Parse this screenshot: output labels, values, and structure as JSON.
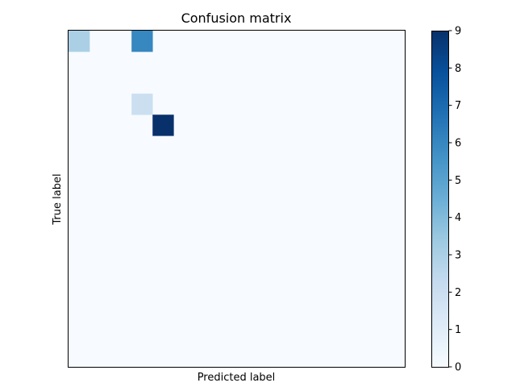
{
  "chart_data": {
    "type": "heatmap",
    "title": "Confusion matrix",
    "xlabel": "Predicted label",
    "ylabel": "True label",
    "grid": false,
    "legend": "none",
    "rows": 16,
    "cols": 16,
    "cells": [
      {
        "row": 0,
        "col": 0,
        "value": 3
      },
      {
        "row": 0,
        "col": 3,
        "value": 6
      },
      {
        "row": 3,
        "col": 3,
        "value": 2
      },
      {
        "row": 4,
        "col": 4,
        "value": 9
      }
    ],
    "colorbar": {
      "range": [
        0,
        9
      ],
      "ticks": [
        "0",
        "1",
        "2",
        "3",
        "4",
        "5",
        "6",
        "7",
        "8",
        "9"
      ],
      "colormap": "Blues",
      "colors": [
        "#f7fbff",
        "#deebf7",
        "#c6dbef",
        "#9ecae1",
        "#6baed6",
        "#4292c6",
        "#2171b5",
        "#08519c",
        "#08306b"
      ]
    }
  }
}
